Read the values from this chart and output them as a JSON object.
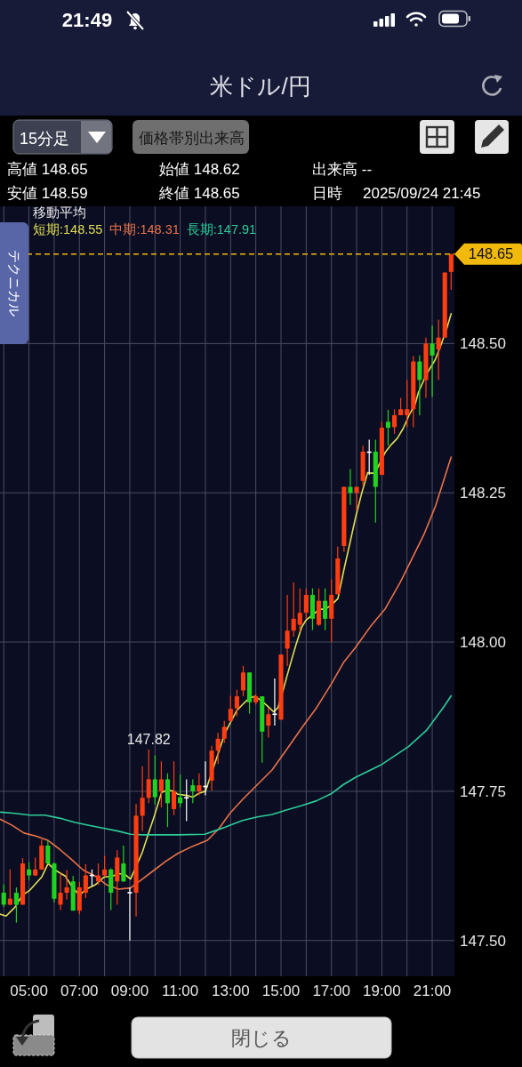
{
  "chart_data": {
    "type": "candlestick",
    "title": "米ドル/円",
    "legend_title": "移動平均",
    "legend": "top left",
    "grid": true,
    "xlim": [
      3.85,
      21.88
    ],
    "ylim": [
      147.44,
      148.73
    ],
    "xticks": [
      {
        "value": 4,
        "label": null
      },
      {
        "value": 5,
        "label": "05:00"
      },
      {
        "value": 6,
        "label": null
      },
      {
        "value": 7,
        "label": "07:00"
      },
      {
        "value": 8,
        "label": null
      },
      {
        "value": 9,
        "label": "09:00"
      },
      {
        "value": 10,
        "label": null
      },
      {
        "value": 11,
        "label": "11:00"
      },
      {
        "value": 12,
        "label": null
      },
      {
        "value": 13,
        "label": "13:00"
      },
      {
        "value": 14,
        "label": null
      },
      {
        "value": 15,
        "label": "15:00"
      },
      {
        "value": 16,
        "label": null
      },
      {
        "value": 17,
        "label": "17:00"
      },
      {
        "value": 18,
        "label": null
      },
      {
        "value": 19,
        "label": "19:00"
      },
      {
        "value": 20,
        "label": null
      },
      {
        "value": 21,
        "label": "21:00"
      }
    ],
    "yticks": [
      {
        "value": 147.5,
        "label": "147.50"
      },
      {
        "value": 147.75,
        "label": "147.75"
      },
      {
        "value": 148,
        "label": "148.00"
      },
      {
        "value": 148.25,
        "label": "148.25"
      },
      {
        "value": 148.5,
        "label": "148.50"
      }
    ],
    "x": [
      4,
      4.25,
      4.5,
      4.75,
      5,
      5.25,
      5.5,
      5.75,
      6,
      6.25,
      6.5,
      6.75,
      7,
      7.25,
      7.5,
      7.75,
      8,
      8.25,
      8.5,
      8.75,
      9,
      9.25,
      9.5,
      9.75,
      10,
      10.25,
      10.5,
      10.75,
      11,
      11.25,
      11.5,
      11.75,
      12,
      12.25,
      12.5,
      12.75,
      13,
      13.25,
      13.5,
      13.75,
      14,
      14.25,
      14.5,
      14.75,
      15,
      15.25,
      15.5,
      15.75,
      16,
      16.25,
      16.5,
      16.75,
      17,
      17.25,
      17.5,
      17.75,
      18,
      18.25,
      18.5,
      18.75,
      19,
      19.25,
      19.5,
      19.75,
      20,
      20.25,
      20.5,
      20.75,
      21,
      21.25,
      21.5,
      21.75
    ],
    "ohlc": [
      [
        147.58,
        147.594,
        147.556,
        147.56
      ],
      [
        147.56,
        147.619,
        147.559,
        147.57
      ],
      [
        147.58,
        147.589,
        147.53,
        147.56
      ],
      [
        147.56,
        147.638,
        147.56,
        147.629
      ],
      [
        147.619,
        147.631,
        147.601,
        147.609
      ],
      [
        147.609,
        147.639,
        147.608,
        147.619
      ],
      [
        147.619,
        147.669,
        147.618,
        147.659
      ],
      [
        147.659,
        147.668,
        147.628,
        147.629
      ],
      [
        147.629,
        147.631,
        147.564,
        147.57
      ],
      [
        147.56,
        147.613,
        147.551,
        147.58
      ],
      [
        147.58,
        147.618,
        147.569,
        147.589
      ],
      [
        147.599,
        147.608,
        147.55,
        147.55
      ],
      [
        147.55,
        147.598,
        147.544,
        147.589
      ],
      [
        147.58,
        147.628,
        147.571,
        147.609
      ],
      [
        147.609,
        147.619,
        147.591,
        147.609
      ],
      [
        147.599,
        147.629,
        147.593,
        147.609
      ],
      [
        147.609,
        147.642,
        147.608,
        147.619
      ],
      [
        147.619,
        147.621,
        147.551,
        147.58
      ],
      [
        147.599,
        147.651,
        147.56,
        147.639
      ],
      [
        147.629,
        147.659,
        147.598,
        147.599
      ],
      [
        147.58,
        147.589,
        147.5,
        147.58
      ],
      [
        147.58,
        147.729,
        147.54,
        147.709
      ],
      [
        147.709,
        147.792,
        147.683,
        147.739
      ],
      [
        147.739,
        147.82,
        147.73,
        147.77
      ],
      [
        147.77,
        147.81,
        147.728,
        147.74
      ],
      [
        147.75,
        147.8,
        147.723,
        147.77
      ],
      [
        147.77,
        147.78,
        147.69,
        147.73
      ],
      [
        147.72,
        147.8,
        147.71,
        147.75
      ],
      [
        147.74,
        147.778,
        147.723,
        147.73
      ],
      [
        147.739,
        147.77,
        147.7,
        147.739
      ],
      [
        147.76,
        147.77,
        147.73,
        147.75
      ],
      [
        147.75,
        147.78,
        147.743,
        147.76
      ],
      [
        147.758,
        147.8,
        147.743,
        147.758
      ],
      [
        147.768,
        147.826,
        147.751,
        147.818
      ],
      [
        147.818,
        147.848,
        147.796,
        147.838
      ],
      [
        147.838,
        147.868,
        147.831,
        147.858
      ],
      [
        147.868,
        147.91,
        147.866,
        147.888
      ],
      [
        147.889,
        147.92,
        147.876,
        147.909
      ],
      [
        147.919,
        147.96,
        147.909,
        147.949
      ],
      [
        147.949,
        147.949,
        147.88,
        147.899
      ],
      [
        147.899,
        147.913,
        147.895,
        147.909
      ],
      [
        147.909,
        147.909,
        147.798,
        147.85
      ],
      [
        147.86,
        147.89,
        147.84,
        147.879
      ],
      [
        147.879,
        147.939,
        147.86,
        147.879
      ],
      [
        147.87,
        147.979,
        147.87,
        147.979
      ],
      [
        147.989,
        148.079,
        147.96,
        148.019
      ],
      [
        148.019,
        148.1,
        148.009,
        148.039
      ],
      [
        148.029,
        148.09,
        148.017,
        148.049
      ],
      [
        148.049,
        148.09,
        148.04,
        148.079
      ],
      [
        148.079,
        148.09,
        148.02,
        148.039
      ],
      [
        148.029,
        148.09,
        148.027,
        148.069
      ],
      [
        148.069,
        148.09,
        148.02,
        148.039
      ],
      [
        148.039,
        148.105,
        148.0,
        148.079
      ],
      [
        148.08,
        148.16,
        148.08,
        148.14
      ],
      [
        148.161,
        148.26,
        148.151,
        148.26
      ],
      [
        148.26,
        148.29,
        148.23,
        148.25
      ],
      [
        148.25,
        148.26,
        148.22,
        148.26
      ],
      [
        148.27,
        148.329,
        148.262,
        148.319
      ],
      [
        148.318,
        148.339,
        148.28,
        148.318
      ],
      [
        148.319,
        148.339,
        148.2,
        148.26
      ],
      [
        148.28,
        148.369,
        148.28,
        148.359
      ],
      [
        148.369,
        148.389,
        148.329,
        148.359
      ],
      [
        148.36,
        148.39,
        148.349,
        148.38
      ],
      [
        148.38,
        148.409,
        148.38,
        148.39
      ],
      [
        148.38,
        148.439,
        148.36,
        148.39
      ],
      [
        148.39,
        148.479,
        148.36,
        148.47
      ],
      [
        148.47,
        148.48,
        148.38,
        148.439
      ],
      [
        148.439,
        148.51,
        148.409,
        148.5
      ],
      [
        148.5,
        148.53,
        148.411,
        148.48
      ],
      [
        148.49,
        148.54,
        148.439,
        148.51
      ],
      [
        148.51,
        148.619,
        148.51,
        148.619
      ],
      [
        148.62,
        148.65,
        148.59,
        148.65
      ]
    ],
    "colors": [
      "#21d321",
      "#ff3d10",
      "#21d321",
      "#ff3d10",
      "#21d321",
      "#ff3d10",
      "#ff3d10",
      "#21d321",
      "#21d321",
      "#ff3d10",
      "#ff3d10",
      "#21d321",
      "#ff3d10",
      "#ff3d10",
      "#ffffff",
      "#ff3d10",
      "#ff3d10",
      "#21d321",
      "#ff3d10",
      "#21d321",
      "#ffffff",
      "#ff3d10",
      "#ff3d10",
      "#ff3d10",
      "#21d321",
      "#ff3d10",
      "#21d321",
      "#ff3d10",
      "#21d321",
      "#ffffff",
      "#21d321",
      "#ff3d10",
      "#ffffff",
      "#ff3d10",
      "#ff3d10",
      "#ff3d10",
      "#ff3d10",
      "#ff3d10",
      "#ff3d10",
      "#21d321",
      "#ff3d10",
      "#21d321",
      "#ff3d10",
      "#ffffff",
      "#ff3d10",
      "#ff3d10",
      "#ff3d10",
      "#ff3d10",
      "#ff3d10",
      "#21d321",
      "#ff3d10",
      "#21d321",
      "#ff3d10",
      "#ff3d10",
      "#ff3d10",
      "#21d321",
      "#ff3d10",
      "#ff3d10",
      "#ffffff",
      "#21d321",
      "#ff3d10",
      "#21d321",
      "#ff3d10",
      "#ff3d10",
      "#ff3d10",
      "#ff3d10",
      "#21d321",
      "#ff3d10",
      "#21d321",
      "#ff3d10",
      "#ff3d10",
      "#ff3d10"
    ],
    "series": [
      {
        "name": "短期:148.55",
        "type": "line",
        "color": "#dede55",
        "x": [
          3.87,
          4.09,
          4.45,
          4.74,
          5.03,
          5.5,
          5.76,
          6.03,
          6.44,
          6.74,
          7.01,
          7.27,
          7.62,
          7.97,
          8.32,
          8.56,
          8.79,
          9.03,
          9.5,
          9.73,
          9.97,
          10.26,
          10.5,
          10.73,
          10.91,
          11.26,
          11.5,
          11.76,
          12,
          12.53,
          12.76,
          13,
          13.24,
          13.47,
          13.71,
          13.94,
          14.18,
          14.41,
          14.71,
          14.88,
          15.12,
          15.35,
          15.59,
          15.82,
          16,
          16.29,
          16.53,
          16.76,
          17,
          17.26,
          17.49,
          17.73,
          17.96,
          18.2,
          18.44,
          18.55,
          18.73,
          18.91,
          19.14,
          19.38,
          19.61,
          19.85,
          20.08,
          20.32,
          20.45,
          20.76,
          21.12,
          21.35,
          21.59,
          21.75
        ],
        "values": [
          147.544,
          147.541,
          147.556,
          147.576,
          147.584,
          147.606,
          147.629,
          147.618,
          147.608,
          147.588,
          147.576,
          147.586,
          147.593,
          147.606,
          147.608,
          147.612,
          147.611,
          147.603,
          147.648,
          147.678,
          147.708,
          147.748,
          147.752,
          147.75,
          147.745,
          147.743,
          147.74,
          147.747,
          147.75,
          147.816,
          147.846,
          147.866,
          147.885,
          147.895,
          147.905,
          147.909,
          147.903,
          147.895,
          147.883,
          147.89,
          147.925,
          147.96,
          147.995,
          148.025,
          148.037,
          148.047,
          148.055,
          148.055,
          148.062,
          148.073,
          148.12,
          148.165,
          148.209,
          148.249,
          148.284,
          148.283,
          148.283,
          148.299,
          148.318,
          148.331,
          148.341,
          148.358,
          148.38,
          148.398,
          148.418,
          148.448,
          148.473,
          148.498,
          148.527,
          148.55
        ]
      },
      {
        "name": "中期:148.31",
        "type": "line",
        "color": "#e8734a",
        "x": [
          3.87,
          4.33,
          4.8,
          5.27,
          5.74,
          6.21,
          6.68,
          7.15,
          7.62,
          8.09,
          8.56,
          9.03,
          9.5,
          9.97,
          10.44,
          10.91,
          11.5,
          12.08,
          12.55,
          12.97,
          13.47,
          14.06,
          14.65,
          15.24,
          15.82,
          16.41,
          17,
          17.47,
          17.94,
          18.55,
          19.14,
          19.73,
          20.2,
          20.67,
          21.14,
          21.75
        ],
        "values": [
          147.703,
          147.693,
          147.68,
          147.675,
          147.668,
          147.653,
          147.636,
          147.618,
          147.608,
          147.593,
          147.586,
          147.588,
          147.603,
          147.618,
          147.633,
          147.646,
          147.658,
          147.668,
          147.688,
          147.713,
          147.736,
          147.761,
          147.786,
          147.821,
          147.856,
          147.89,
          147.93,
          147.965,
          147.99,
          148.026,
          148.056,
          148.1,
          148.14,
          148.18,
          148.229,
          148.31
        ]
      },
      {
        "name": "長期:147.91",
        "type": "line",
        "color": "#2ecc9a",
        "x": [
          3.87,
          4.45,
          5.03,
          5.62,
          6.21,
          6.8,
          7.38,
          7.97,
          8.56,
          9.03,
          9.5,
          9.97,
          10.91,
          11.97,
          12.32,
          12.79,
          13.47,
          14.06,
          14.65,
          15.24,
          15.82,
          16.41,
          17,
          17.47,
          17.94,
          19,
          20.06,
          20.77,
          21.47,
          21.75
        ],
        "values": [
          147.715,
          147.713,
          147.71,
          147.71,
          147.705,
          147.698,
          147.693,
          147.688,
          147.683,
          147.678,
          147.677,
          147.677,
          147.677,
          147.678,
          147.683,
          147.69,
          147.701,
          147.707,
          147.711,
          147.719,
          147.726,
          147.734,
          147.746,
          147.761,
          147.773,
          147.795,
          147.825,
          147.852,
          147.892,
          147.91
        ]
      }
    ],
    "ref_lines": [
      {
        "axis": "y",
        "value": 148.65,
        "color": "#f0b90b",
        "line_style": "dashed"
      }
    ],
    "annotations": [
      "21:49",
      "15分足",
      "価格帯別出来高",
      "高値 148.65",
      "始値 148.62",
      "出来高 --",
      "安値 148.59",
      "終値 148.65",
      "日時",
      "2025/09/24 21:45",
      "テクニカル",
      "閉じる",
      {
        "text": "147.82",
        "x": 9.75,
        "y": 147.82
      },
      {
        "text": "148.65",
        "x": 21.88,
        "y": 148.65
      }
    ]
  }
}
